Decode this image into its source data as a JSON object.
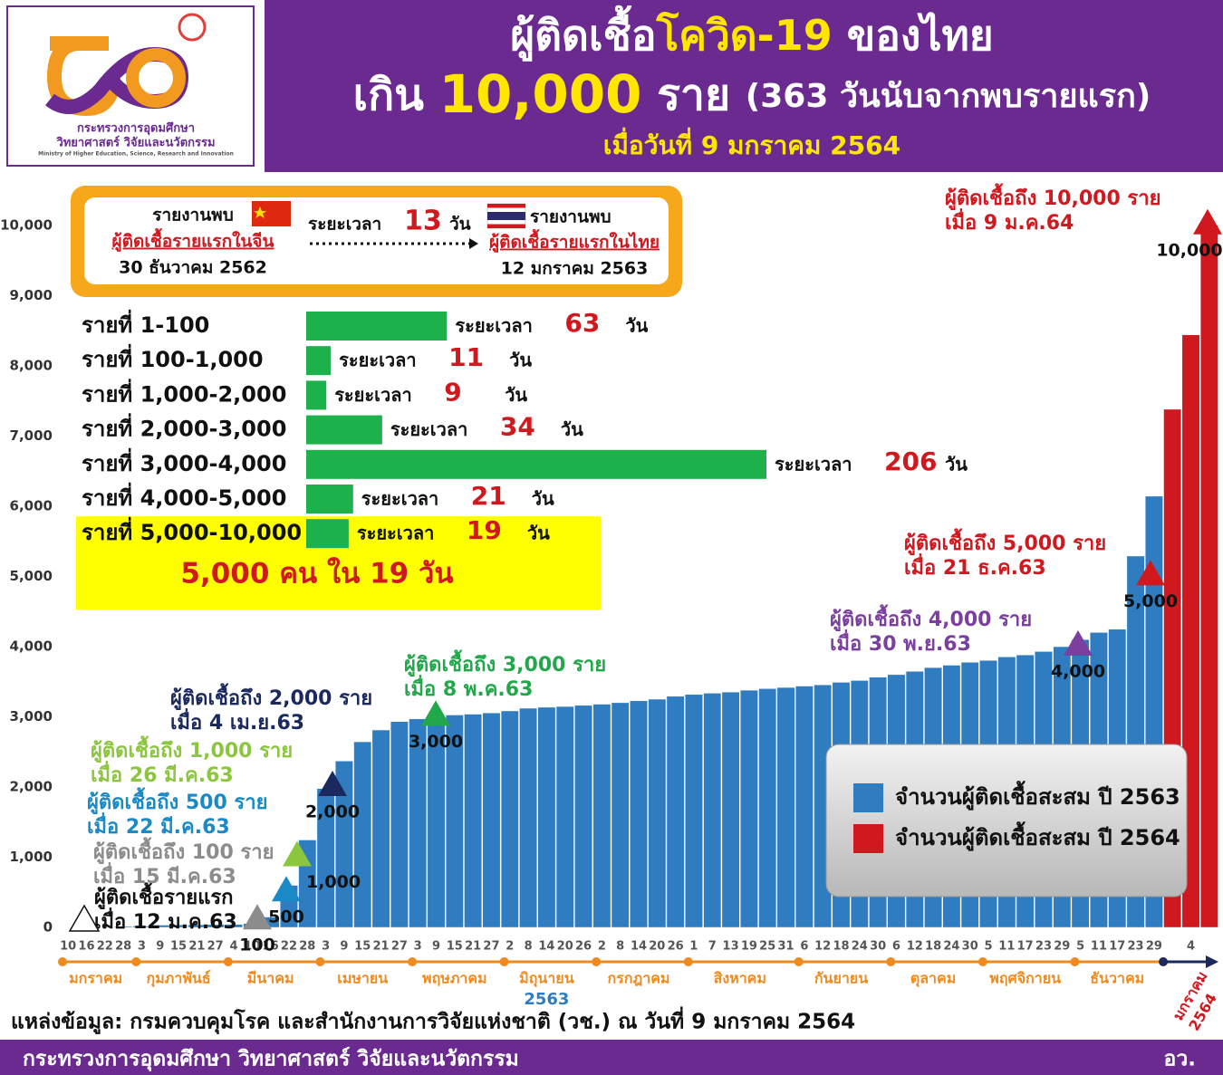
{
  "header": {
    "logo": {
      "line1": "กระทรวงการอุดมศึกษา",
      "line2": "วิทยาศาสตร์ วิจัยและนวัตกรรม",
      "line3": "Ministry of Higher Education, Science, Research and Innovation"
    },
    "title_parts": [
      "ผู้ติดเชื้อ",
      "โควิด-19",
      " ของไทย"
    ],
    "subtitle_parts": [
      "เกิน ",
      "10,000",
      " ราย ",
      "(363 วันนับจากพบรายแรก)"
    ],
    "date": "เมื่อวันที่ 9 มกราคม 2564"
  },
  "timeline": {
    "left": {
      "heading": "รายงานพบ",
      "label": "ผู้ติดเชื้อรายแรกในจีน",
      "date": "30 ธันวาคม 2562"
    },
    "gap": {
      "prefix": "ระยะเวลา",
      "days": 13,
      "unit": "วัน"
    },
    "right": {
      "heading": "รายงานพบ",
      "label": "ผู้ติดเชื้อรายแรกในไทย",
      "date": "12 มกราคม 2563"
    }
  },
  "chart_data": [
    {
      "type": "bar",
      "categories": [
        "10",
        "16",
        "22",
        "28",
        "3",
        "9",
        "15",
        "21",
        "27",
        "4",
        "10",
        "16",
        "22",
        "28",
        "3",
        "9",
        "15",
        "21",
        "27",
        "3",
        "9",
        "15",
        "21",
        "27",
        "2",
        "8",
        "14",
        "20",
        "26",
        "2",
        "8",
        "14",
        "20",
        "26",
        "1",
        "7",
        "13",
        "19",
        "25",
        "31",
        "6",
        "12",
        "18",
        "24",
        "30",
        "6",
        "12",
        "18",
        "24",
        "30",
        "5",
        "11",
        "17",
        "23",
        "29",
        "5",
        "11",
        "17",
        "23",
        "29",
        null,
        "4",
        null
      ],
      "series": [
        {
          "name": "จำนวนผู้ติดเชื้อสะสม ปี 2563",
          "color": "#2f7dc0",
          "values": [
            0,
            4,
            5,
            14,
            19,
            32,
            34,
            35,
            40,
            43,
            53,
            147,
            599,
            1245,
            1978,
            2369,
            2643,
            2811,
            2931,
            2969,
            3004,
            3025,
            3037,
            3054,
            3083,
            3121,
            3135,
            3146,
            3162,
            3179,
            3200,
            3227,
            3250,
            3291,
            3317,
            3335,
            3351,
            3378,
            3400,
            3417,
            3437,
            3454,
            3490,
            3516,
            3564,
            3600,
            3646,
            3700,
            3734,
            3775,
            3802,
            3852,
            3880,
            3929,
            3998,
            4100,
            4200,
            4246,
            5289,
            6141,
            null,
            null,
            null
          ]
        },
        {
          "name": "จำนวนผู้ติดเชื้อสะสม ปี 2564",
          "color": "#d0191f",
          "values": [
            null,
            null,
            null,
            null,
            null,
            null,
            null,
            null,
            null,
            null,
            null,
            null,
            null,
            null,
            null,
            null,
            null,
            null,
            null,
            null,
            null,
            null,
            null,
            null,
            null,
            null,
            null,
            null,
            null,
            null,
            null,
            null,
            null,
            null,
            null,
            null,
            null,
            null,
            null,
            null,
            null,
            null,
            null,
            null,
            null,
            null,
            null,
            null,
            null,
            null,
            null,
            null,
            null,
            null,
            null,
            null,
            null,
            null,
            null,
            null,
            7379,
            8439,
            10000
          ]
        }
      ],
      "months": [
        "มกราคม",
        "กุมภาพันธ์",
        "มีนาคม",
        "เมษายน",
        "พฤษภาคม",
        "มิถุนายน",
        "กรกฎาคม",
        "สิงหาคม",
        "กันยายน",
        "ตุลาคม",
        "พฤศจิกายน",
        "ธันวาคม"
      ],
      "year_label": "2563",
      "next_month": "มกราคม",
      "next_year": "2564",
      "ylim": [
        0,
        10500
      ],
      "yticks": [
        0,
        {
          "value": 1000,
          "label": "1,000"
        },
        {
          "value": 2000,
          "label": "2,000"
        },
        {
          "value": 3000,
          "label": "3,000"
        },
        {
          "value": 4000,
          "label": "4,000"
        },
        {
          "value": 5000,
          "label": "5,000"
        },
        {
          "value": 6000,
          "label": "6,000"
        },
        {
          "value": 7000,
          "label": "7,000"
        },
        {
          "value": 8000,
          "label": "8,000"
        },
        {
          "value": 9000,
          "label": "9,000"
        },
        {
          "value": 10000,
          "label": "10,000"
        }
      ],
      "grid": false,
      "legend": "lower right",
      "annotations": [
        {
          "line1": "ผู้ติดเชื้อรายแรก",
          "line2": "เมื่อ 12 ม.ค.63",
          "color": "#111111",
          "marker_color": "#ffffff"
        },
        {
          "line1": "ผู้ติดเชื้อถึง 100 ราย",
          "line2": "เมื่อ 15 มี.ค.63",
          "value": 100,
          "color": "#8c8c8c"
        },
        {
          "line1": "ผู้ติดเชื้อถึง 500 ราย",
          "line2": "เมื่อ 22 มี.ค.63",
          "value": 500,
          "color": "#1a8ac6"
        },
        {
          "line1": "ผู้ติดเชื้อถึง 1,000 ราย",
          "line2": "เมื่อ 26 มี.ค.63",
          "value": 1000,
          "value_label": "1,000",
          "color": "#8cc63e"
        },
        {
          "line1": "ผู้ติดเชื้อถึง 2,000 ราย",
          "line2": "เมื่อ 4 เม.ย.63",
          "value": 2000,
          "value_label": "2,000",
          "color": "#1b2a5e"
        },
        {
          "line1": "ผู้ติดเชื้อถึง 3,000 ราย",
          "line2": "เมื่อ 8 พ.ค.63",
          "value": 3000,
          "value_label": "3,000",
          "color": "#22a84a"
        },
        {
          "line1": "ผู้ติดเชื้อถึง 4,000 ราย",
          "line2": "เมื่อ 30 พ.ย.63",
          "value": 4000,
          "value_label": "4,000",
          "color": "#7b3fa0"
        },
        {
          "line1": "ผู้ติดเชื้อถึง 5,000 ราย",
          "line2": "เมื่อ 21 ธ.ค.63",
          "value": 5000,
          "value_label": "5,000",
          "color": "#d0191f"
        },
        {
          "line1": "ผู้ติดเชื้อถึง 10,000 ราย",
          "line2": "เมื่อ 9 ม.ค.64",
          "value": 10000,
          "value_label": "10,000",
          "color": "#d0191f"
        }
      ]
    },
    {
      "type": "hbar",
      "categories": [
        "รายที่ 1-100",
        "รายที่ 100-1,000",
        "รายที่ 1,000-2,000",
        "รายที่ 2,000-3,000",
        "รายที่ 3,000-4,000",
        "รายที่ 4,000-5,000",
        "รายที่ 5,000-10,000"
      ],
      "values": [
        63,
        11,
        9,
        34,
        206,
        21,
        19
      ],
      "color": "#1db14b",
      "value_prefix": "ระยะเวลา",
      "value_unit": "วัน",
      "highlight": "5,000 คน ใน 19 วัน"
    }
  ],
  "source": "แหล่งข้อมูล: กรมควบคุมโรค และสำนักงานการวิจัยแห่งชาติ (วช.) ณ วันที่ 9 มกราคม 2564",
  "footer": {
    "ministry": "กระทรวงการอุดมศึกษา วิทยาศาสตร์ วิจัยและนวัตกรรม",
    "abbr": "อว."
  }
}
